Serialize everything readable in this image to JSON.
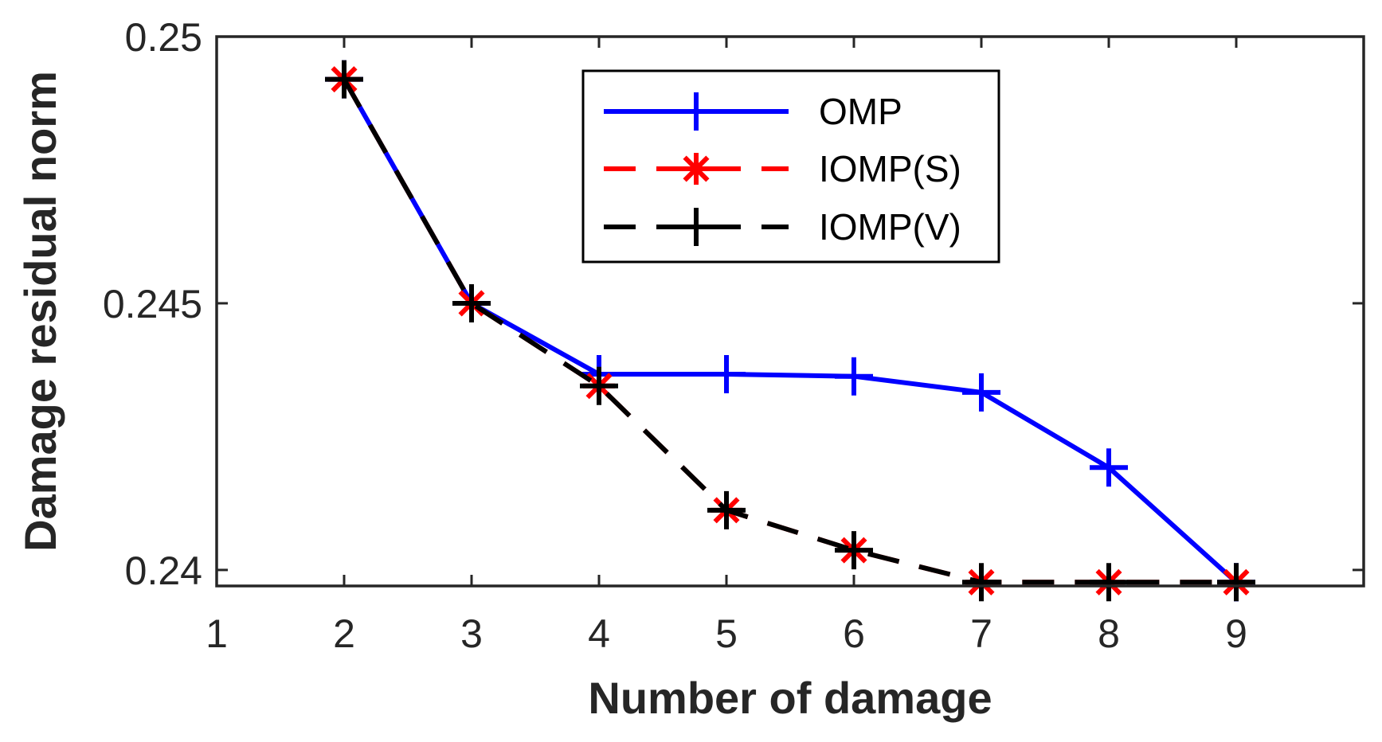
{
  "chart_data": {
    "type": "line",
    "title": "",
    "xlabel": "Number of damage",
    "ylabel": "Damage residual norm",
    "xlim": [
      1,
      10
    ],
    "ylim": [
      0.2397,
      0.25
    ],
    "xticks": [
      1,
      2,
      3,
      4,
      5,
      6,
      7,
      8,
      9
    ],
    "xtick_labels": [
      "1",
      "2",
      "3",
      "4",
      "5",
      "6",
      "7",
      "8",
      "9"
    ],
    "yticks": [
      0.24,
      0.245,
      0.25
    ],
    "ytick_labels": [
      "0.24",
      "0.245",
      "0.25"
    ],
    "grid": false,
    "legend_position": "top-center",
    "series": [
      {
        "name": "OMP",
        "color": "#0000ff",
        "line_style": "solid",
        "marker": "plus",
        "x": [
          2,
          3,
          4,
          5,
          6,
          7,
          8,
          9
        ],
        "y": [
          0.2492,
          0.245,
          0.24367,
          0.24367,
          0.24363,
          0.24333,
          0.24192,
          0.23977
        ]
      },
      {
        "name": "IOMP(S)",
        "color": "#ff0000",
        "line_style": "dashed",
        "marker": "asterisk",
        "x": [
          2,
          3,
          4,
          5,
          6,
          7,
          8,
          9
        ],
        "y": [
          0.2492,
          0.245,
          0.24345,
          0.24112,
          0.24037,
          0.23977,
          0.23977,
          0.23977
        ]
      },
      {
        "name": "IOMP(V)",
        "color": "#000000",
        "line_style": "dashed",
        "marker": "plus",
        "x": [
          2,
          3,
          4,
          5,
          6,
          7,
          8,
          9
        ],
        "y": [
          0.2492,
          0.245,
          0.24345,
          0.24112,
          0.24037,
          0.23977,
          0.23977,
          0.23977
        ]
      }
    ]
  }
}
